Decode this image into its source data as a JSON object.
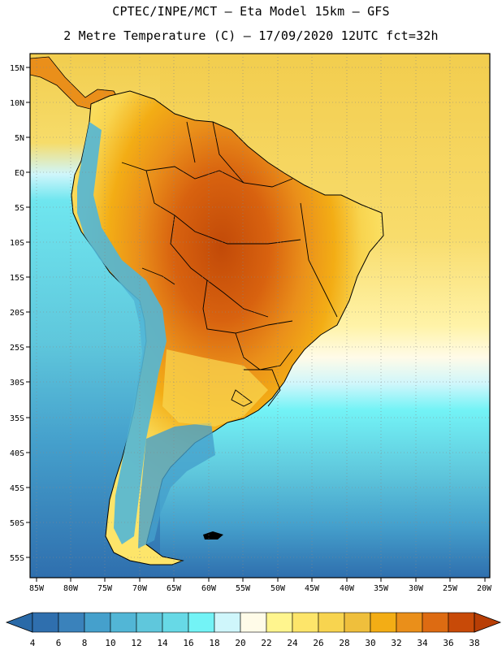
{
  "header": {
    "line1": "CPTEC/INPE/MCT –  Eta Model 15km – GFS",
    "line2": "2 Metre Temperature (C) – 17/09/2020 12UTC fct=32h"
  },
  "axes": {
    "lat_labels": [
      "15N",
      "10N",
      "5N",
      "EQ",
      "5S",
      "10S",
      "15S",
      "20S",
      "25S",
      "30S",
      "35S",
      "40S",
      "45S",
      "50S",
      "55S"
    ],
    "lon_labels": [
      "85W",
      "80W",
      "75W",
      "70W",
      "65W",
      "60W",
      "55W",
      "50W",
      "45W",
      "40W",
      "35W",
      "30W",
      "25W",
      "20W"
    ]
  },
  "colorbar": {
    "labels": [
      "4",
      "6",
      "8",
      "10",
      "12",
      "14",
      "16",
      "18",
      "20",
      "22",
      "24",
      "26",
      "28",
      "30",
      "32",
      "34",
      "36",
      "38"
    ],
    "colors": [
      "#2f6fae",
      "#3a82bb",
      "#45a0cc",
      "#52b6d6",
      "#5fc7dc",
      "#67d9e6",
      "#73f3f6",
      "#cff6fb",
      "#fffbe8",
      "#fff58e",
      "#fde56a",
      "#f8d44f",
      "#efbf3c",
      "#f3ad15",
      "#ea8f1a",
      "#dd6b12",
      "#c84a08"
    ],
    "low_color": "#2a6aa8",
    "high_color": "#b83e05"
  },
  "map": {
    "ocean_warm": "#f2cd4e",
    "ocean_cool": "#5fc7dc",
    "border_color": "#000000"
  }
}
